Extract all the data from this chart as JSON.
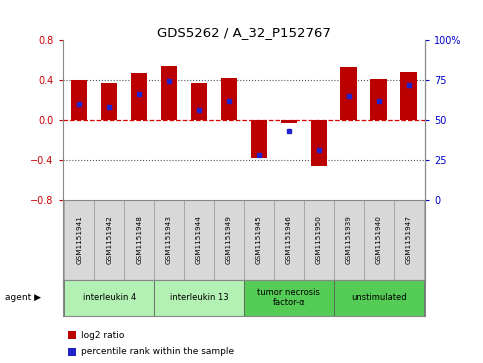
{
  "title": "GDS5262 / A_32_P152767",
  "samples": [
    "GSM1151941",
    "GSM1151942",
    "GSM1151948",
    "GSM1151943",
    "GSM1151944",
    "GSM1151949",
    "GSM1151945",
    "GSM1151946",
    "GSM1151950",
    "GSM1151939",
    "GSM1151940",
    "GSM1151947"
  ],
  "log2_ratio": [
    0.4,
    0.37,
    0.47,
    0.54,
    0.37,
    0.42,
    -0.38,
    -0.03,
    -0.46,
    0.53,
    0.41,
    0.48
  ],
  "percentile": [
    60,
    58,
    66,
    74,
    56,
    62,
    28,
    43,
    31,
    65,
    62,
    72
  ],
  "agents": [
    {
      "label": "interleukin 4",
      "start": 0,
      "end": 3,
      "color": "#b3f0b3"
    },
    {
      "label": "interleukin 13",
      "start": 3,
      "end": 6,
      "color": "#b3f0b3"
    },
    {
      "label": "tumor necrosis\nfactor-α",
      "start": 6,
      "end": 9,
      "color": "#55cc55"
    },
    {
      "label": "unstimulated",
      "start": 9,
      "end": 12,
      "color": "#55cc55"
    }
  ],
  "bar_color": "#bb0000",
  "dot_color": "#2222cc",
  "ylim_left": [
    -0.8,
    0.8
  ],
  "ylim_right": [
    0,
    100
  ],
  "yticks_left": [
    -0.8,
    -0.4,
    0.0,
    0.4,
    0.8
  ],
  "yticks_right": [
    0,
    25,
    50,
    75,
    100
  ],
  "bg_color": "#ffffff",
  "bar_width": 0.55,
  "hline_0_color": "#dd0000",
  "hline_04_color": "#555555"
}
